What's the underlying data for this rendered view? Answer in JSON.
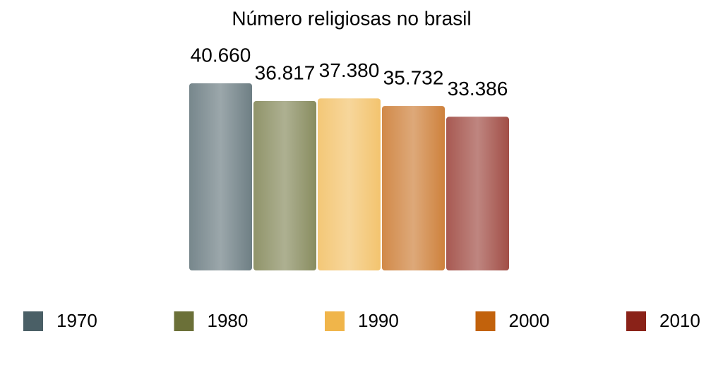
{
  "chart_data": {
    "type": "bar",
    "title": "Número religiosas no brasil",
    "series": [
      {
        "name": "1970",
        "color": "#4a5f66",
        "values": [
          40660
        ],
        "value_labels": [
          "40.660"
        ]
      },
      {
        "name": "1980",
        "color": "#6b7038",
        "values": [
          36817
        ],
        "value_labels": [
          "36.817"
        ]
      },
      {
        "name": "1990",
        "color": "#f0b54a",
        "values": [
          37380
        ],
        "value_labels": [
          "37.380"
        ]
      },
      {
        "name": "2000",
        "color": "#c2620c",
        "values": [
          35732
        ],
        "value_labels": [
          "35.732"
        ]
      },
      {
        "name": "2010",
        "color": "#8a2218",
        "values": [
          33386
        ],
        "value_labels": [
          "33.386"
        ]
      }
    ],
    "legend": "bottom"
  }
}
